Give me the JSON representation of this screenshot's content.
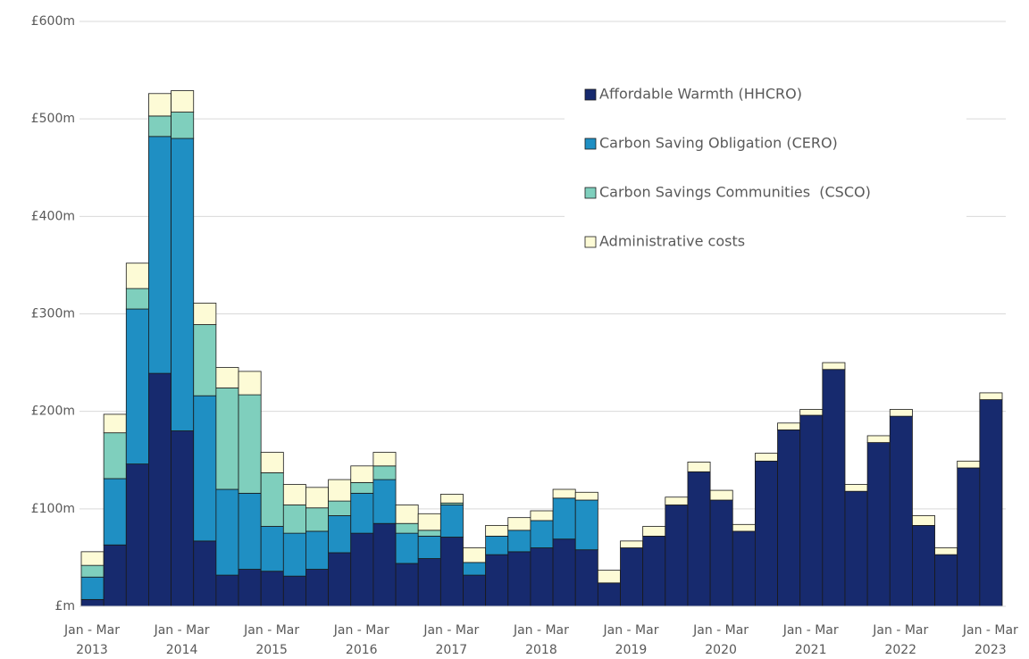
{
  "chart_data": {
    "type": "stacked_bar",
    "categories": [
      "Jan - Mar 2013",
      null,
      null,
      null,
      "Jan - Mar 2014",
      null,
      null,
      null,
      "Jan - Mar 2015",
      null,
      null,
      null,
      "Jan - Mar 2016",
      null,
      null,
      null,
      "Jan - Mar 2017",
      null,
      null,
      null,
      "Jan - Mar 2018",
      null,
      null,
      null,
      "Jan - Mar 2019",
      null,
      null,
      null,
      "Jan - Mar 2020",
      null,
      null,
      null,
      "Jan - Mar 2021",
      null,
      null,
      null,
      "Jan - Mar 2022",
      null,
      null,
      null,
      "Jan - Mar 2023"
    ],
    "series": [
      {
        "name": "Affordable Warmth (HHCRO)",
        "color": "#172a6e",
        "values": [
          7,
          63,
          146,
          239,
          180,
          67,
          32,
          38,
          36,
          31,
          38,
          55,
          75,
          85,
          44,
          49,
          71,
          32,
          53,
          56,
          60,
          69,
          58,
          24,
          60,
          72,
          104,
          138,
          109,
          77,
          149,
          181,
          196,
          243,
          118,
          168,
          195,
          83,
          53,
          142,
          212
        ]
      },
      {
        "name": "Carbon Saving Obligation (CERO)",
        "color": "#1f8fc3",
        "values": [
          23,
          68,
          159,
          243,
          300,
          149,
          88,
          78,
          46,
          44,
          39,
          38,
          41,
          45,
          31,
          23,
          33,
          13,
          19,
          22,
          28,
          42,
          51,
          0,
          0,
          0,
          0,
          0,
          0,
          0,
          0,
          0,
          0,
          0,
          0,
          0,
          0,
          0,
          0,
          0,
          0
        ]
      },
      {
        "name": "Carbon Savings Communities  (CSCO)",
        "color": "#7fcfbd",
        "values": [
          12,
          47,
          21,
          21,
          27,
          73,
          104,
          101,
          55,
          29,
          24,
          15,
          11,
          14,
          10,
          6,
          2,
          0,
          0,
          0,
          0,
          0,
          0,
          0,
          0,
          0,
          0,
          0,
          0,
          0,
          0,
          0,
          0,
          0,
          0,
          0,
          0,
          0,
          0,
          0,
          0
        ]
      },
      {
        "name": "Administrative costs",
        "color": "#fdfbd6",
        "values": [
          14,
          19,
          26,
          23,
          22,
          22,
          21,
          24,
          21,
          21,
          21,
          22,
          17,
          14,
          19,
          17,
          9,
          15,
          11,
          13,
          10,
          9,
          8,
          13,
          7,
          10,
          8,
          10,
          10,
          7,
          8,
          7,
          6,
          7,
          7,
          7,
          7,
          10,
          7,
          7,
          7
        ]
      }
    ],
    "ylim": [
      0,
      600
    ],
    "yticks": [
      {
        "value": 0,
        "label": "£m"
      },
      {
        "value": 100,
        "label": "£100m"
      },
      {
        "value": 200,
        "label": "£200m"
      },
      {
        "value": 300,
        "label": "£300m"
      },
      {
        "value": 400,
        "label": "£400m"
      },
      {
        "value": 500,
        "label": "£500m"
      },
      {
        "value": 600,
        "label": "£600m"
      }
    ],
    "grid": true,
    "legend": "upper right"
  }
}
